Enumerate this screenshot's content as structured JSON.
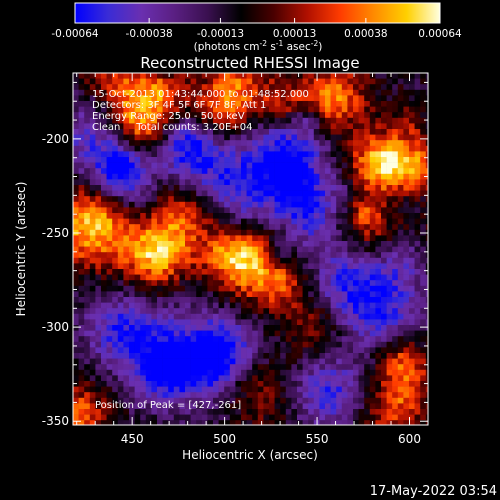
{
  "colorbar": {
    "ticks": [
      "-0.00064",
      "-0.00038",
      "-0.00013",
      "0.00013",
      "0.00038",
      "0.00064"
    ],
    "tick_values": [
      -0.00064,
      -0.00038,
      -0.00013,
      0.00013,
      0.00038,
      0.00064
    ],
    "range": [
      -0.00064,
      0.00064
    ],
    "units_main": "(photons cm",
    "units_sup1": "-2",
    "units_mid1": " s",
    "units_sup2": "-1",
    "units_mid2": " asec",
    "units_sup3": "-2",
    "units_end": ")",
    "colormap_stops": [
      "#0000ff",
      "#3a2cd6",
      "#6a2fb0",
      "#5a1f82",
      "#3a1050",
      "#000000",
      "#4a0000",
      "#b01000",
      "#ff3c00",
      "#ff8a00",
      "#ffd000",
      "#ffffe0"
    ]
  },
  "chart_data": {
    "type": "heatmap",
    "title": "Reconstructed RHESSI Image",
    "xlabel": "Heliocentric X (arcsec)",
    "ylabel": "Heliocentric Y (arcsec)",
    "xlim": [
      418,
      610
    ],
    "ylim": [
      -352,
      -165
    ],
    "xticks": [
      450,
      500,
      550,
      600
    ],
    "yticks": [
      -200,
      -250,
      -300,
      -350
    ],
    "xtick_labels": [
      "450",
      "500",
      "550",
      "600"
    ],
    "ytick_labels": [
      "-200",
      "-250",
      "-300",
      "-350"
    ],
    "annotations": [
      "15-Oct-2013 01:43:44.000 to 01:48:52.000",
      "Detectors: 3F 4F 5F 6F 7F 8F, Att 1",
      "Energy Range: 25.0 - 50.0 keV",
      "Clean     Total counts: 3.20E+04"
    ],
    "peak_text": "Position of Peak = [427,-261]",
    "peak_position": [
      427,
      -261
    ],
    "bright_regions": [
      {
        "x": 428,
        "y": -245,
        "intensity": 0.95
      },
      {
        "x": 462,
        "y": -262,
        "intensity": 0.9
      },
      {
        "x": 478,
        "y": -242,
        "intensity": 0.75
      },
      {
        "x": 505,
        "y": -262,
        "intensity": 0.95
      },
      {
        "x": 528,
        "y": -272,
        "intensity": 0.8
      },
      {
        "x": 440,
        "y": -175,
        "intensity": 0.8
      },
      {
        "x": 455,
        "y": -192,
        "intensity": 0.75
      },
      {
        "x": 500,
        "y": -180,
        "intensity": 0.7
      },
      {
        "x": 530,
        "y": -185,
        "intensity": 0.65
      },
      {
        "x": 558,
        "y": -178,
        "intensity": 0.75
      },
      {
        "x": 582,
        "y": -212,
        "intensity": 0.8
      },
      {
        "x": 598,
        "y": -218,
        "intensity": 0.85
      },
      {
        "x": 575,
        "y": -250,
        "intensity": 0.65
      },
      {
        "x": 595,
        "y": -318,
        "intensity": 0.7
      },
      {
        "x": 420,
        "y": -345,
        "intensity": 0.75
      },
      {
        "x": 590,
        "y": -345,
        "intensity": 0.5
      },
      {
        "x": 520,
        "y": -335,
        "intensity": 0.35
      },
      {
        "x": 548,
        "y": -300,
        "intensity": 0.45
      }
    ],
    "dark_regions": [
      {
        "x": 445,
        "y": -220,
        "intensity": -0.85
      },
      {
        "x": 480,
        "y": -205,
        "intensity": -0.75
      },
      {
        "x": 540,
        "y": -238,
        "intensity": -0.8
      },
      {
        "x": 470,
        "y": -320,
        "intensity": -0.85
      },
      {
        "x": 445,
        "y": -300,
        "intensity": -0.7
      },
      {
        "x": 500,
        "y": -310,
        "intensity": -0.75
      },
      {
        "x": 565,
        "y": -270,
        "intensity": -0.7
      },
      {
        "x": 555,
        "y": -335,
        "intensity": -0.7
      },
      {
        "x": 500,
        "y": -225,
        "intensity": -0.65
      },
      {
        "x": 430,
        "y": -200,
        "intensity": -0.6
      },
      {
        "x": 585,
        "y": -290,
        "intensity": -0.6
      },
      {
        "x": 530,
        "y": -210,
        "intensity": -0.55
      }
    ]
  },
  "footer": {
    "date": "17-May-2022 03:54"
  }
}
